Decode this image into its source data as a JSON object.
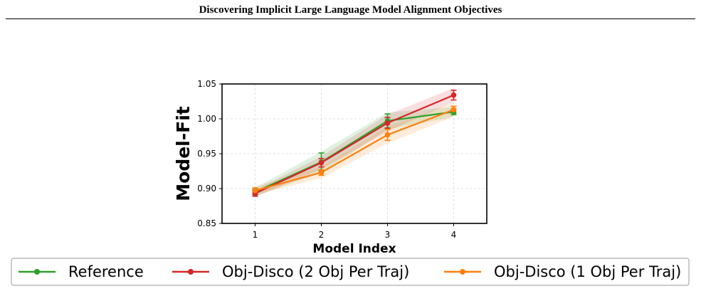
{
  "page": {
    "header": "Discovering Implicit Large Language Model Alignment Objectives"
  },
  "chart_data": {
    "type": "line",
    "title": "",
    "xlabel": "Model Index",
    "ylabel": "Model-Fit",
    "x": [
      1,
      2,
      3,
      4
    ],
    "xticks": [
      "1",
      "2",
      "3",
      "4"
    ],
    "xlim": [
      0.5,
      4.5
    ],
    "ylim": [
      0.85,
      1.05
    ],
    "yticks": [
      "0.85",
      "0.90",
      "0.95",
      "1.00",
      "1.05"
    ],
    "grid": true,
    "legend_position": "bottom",
    "series": [
      {
        "name": "Reference",
        "color": "#2ca02c",
        "values": [
          0.895,
          0.938,
          0.997,
          1.01
        ],
        "err": [
          0.004,
          0.013,
          0.01,
          0.004
        ],
        "band": [
          0.006,
          0.015,
          0.012,
          0.007
        ]
      },
      {
        "name": "Obj-Disco (2 Obj Per Traj)",
        "color": "#d62728",
        "values": [
          0.893,
          0.937,
          0.994,
          1.034
        ],
        "err": [
          0.004,
          0.006,
          0.008,
          0.007
        ],
        "band": [
          0.005,
          0.009,
          0.012,
          0.01
        ]
      },
      {
        "name": "Obj-Disco (1 Obj Per Traj)",
        "color": "#ff7f0e",
        "values": [
          0.897,
          0.923,
          0.977,
          1.013
        ],
        "err": [
          0.004,
          0.004,
          0.008,
          0.005
        ],
        "band": [
          0.006,
          0.008,
          0.012,
          0.01
        ]
      }
    ]
  }
}
